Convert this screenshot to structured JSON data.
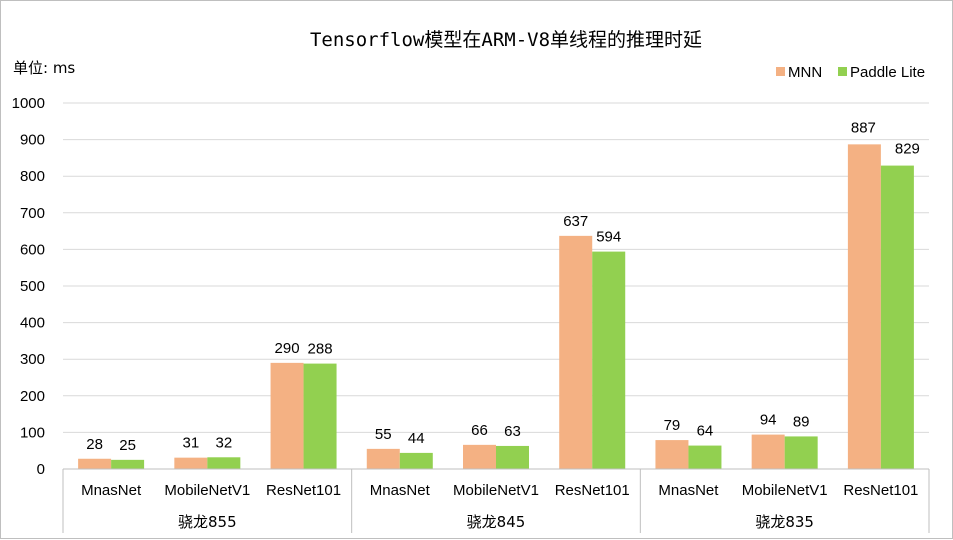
{
  "chart_data": {
    "type": "bar",
    "title": "Tensorflow模型在ARM-V8单线程的推理时延",
    "unit_label": "单位: ms",
    "ylim": [
      0,
      1000
    ],
    "yticks": [
      "0",
      "100",
      "200",
      "300",
      "400",
      "500",
      "600",
      "700",
      "800",
      "900",
      "1000"
    ],
    "grid": true,
    "legend_position": "top-right",
    "groups": [
      "骁龙855",
      "骁龙845",
      "骁龙835"
    ],
    "categories": [
      "MnasNet",
      "MobileNetV1",
      "ResNet101",
      "MnasNet",
      "MobileNetV1",
      "ResNet101",
      "MnasNet",
      "MobileNetV1",
      "ResNet101"
    ],
    "series": [
      {
        "name": "MNN",
        "color": "#f4b183",
        "values": [
          28,
          31,
          290,
          55,
          66,
          637,
          79,
          94,
          887
        ]
      },
      {
        "name": "Paddle Lite",
        "color": "#92d050",
        "values": [
          25,
          32,
          288,
          44,
          63,
          594,
          64,
          89,
          829
        ]
      }
    ]
  }
}
